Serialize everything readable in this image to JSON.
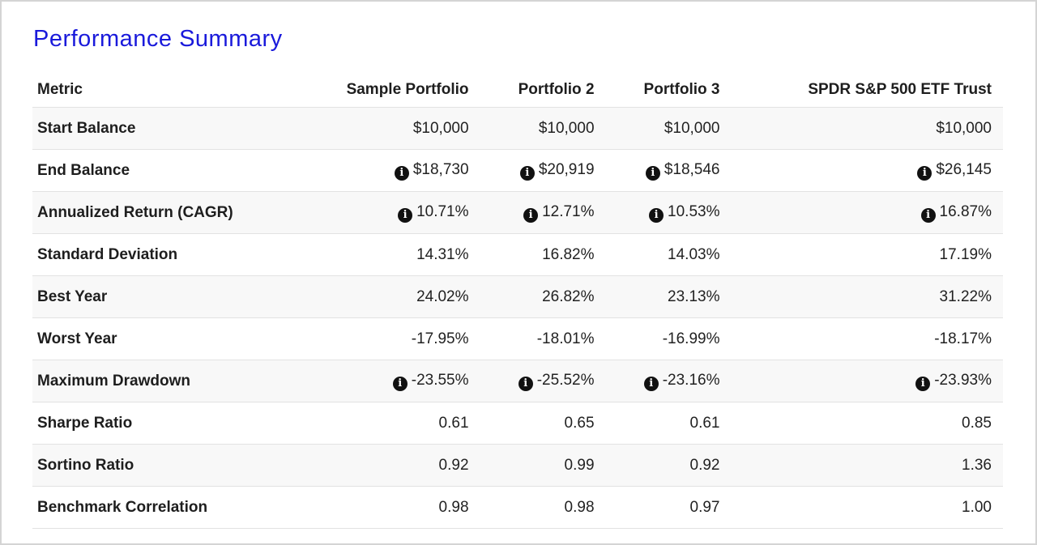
{
  "page": {
    "title": "Performance Summary",
    "colors": {
      "title": "#1a1adb",
      "stripe": "#f8f8f8",
      "border": "#e2e2e2"
    }
  },
  "table": {
    "headers": [
      "Metric",
      "Sample Portfolio",
      "Portfolio 2",
      "Portfolio 3",
      "SPDR S&P 500 ETF Trust"
    ],
    "rows": [
      {
        "metric": "Start Balance",
        "info": false,
        "values": [
          "$10,000",
          "$10,000",
          "$10,000",
          "$10,000"
        ]
      },
      {
        "metric": "End Balance",
        "info": true,
        "info_icon": "info-circle-icon",
        "values": [
          "$18,730",
          "$20,919",
          "$18,546",
          "$26,145"
        ]
      },
      {
        "metric": "Annualized Return (CAGR)",
        "info": true,
        "info_icon": "info-circle-icon",
        "values": [
          "10.71%",
          "12.71%",
          "10.53%",
          "16.87%"
        ]
      },
      {
        "metric": "Standard Deviation",
        "info": false,
        "values": [
          "14.31%",
          "16.82%",
          "14.03%",
          "17.19%"
        ]
      },
      {
        "metric": "Best Year",
        "info": false,
        "values": [
          "24.02%",
          "26.82%",
          "23.13%",
          "31.22%"
        ]
      },
      {
        "metric": "Worst Year",
        "info": false,
        "values": [
          "-17.95%",
          "-18.01%",
          "-16.99%",
          "-18.17%"
        ]
      },
      {
        "metric": "Maximum Drawdown",
        "info": true,
        "info_icon": "info-circle-icon",
        "values": [
          "-23.55%",
          "-25.52%",
          "-23.16%",
          "-23.93%"
        ]
      },
      {
        "metric": "Sharpe Ratio",
        "info": false,
        "values": [
          "0.61",
          "0.65",
          "0.61",
          "0.85"
        ]
      },
      {
        "metric": "Sortino Ratio",
        "info": false,
        "values": [
          "0.92",
          "0.99",
          "0.92",
          "1.36"
        ]
      },
      {
        "metric": "Benchmark Correlation",
        "info": false,
        "values": [
          "0.98",
          "0.98",
          "0.97",
          "1.00"
        ]
      }
    ]
  }
}
